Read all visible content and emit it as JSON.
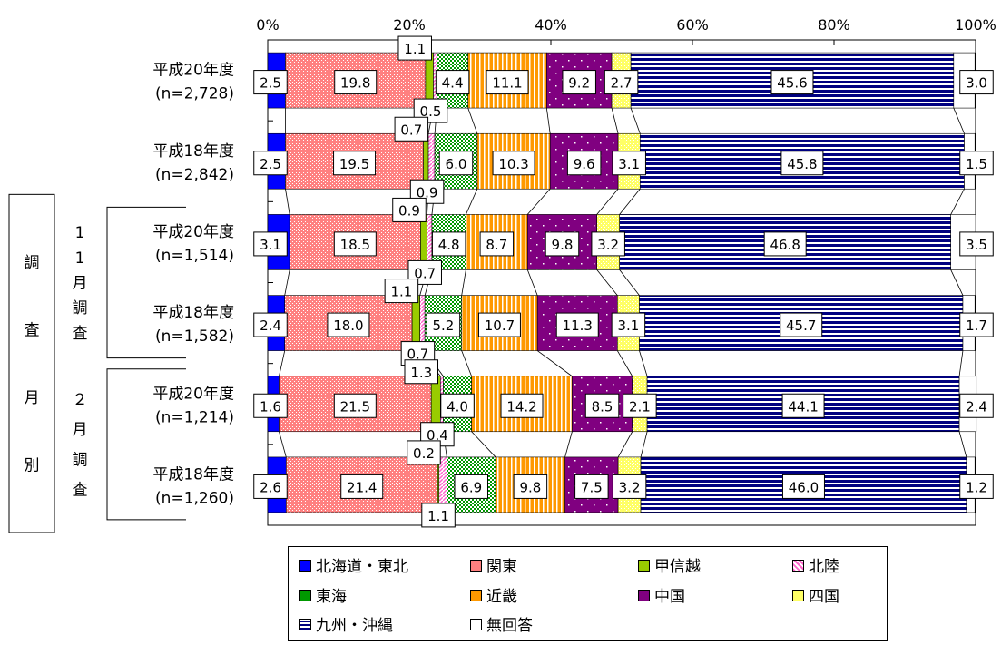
{
  "chart_data": {
    "type": "bar",
    "orientation": "horizontal",
    "stacked": true,
    "percent": true,
    "xlim": [
      0,
      100
    ],
    "x_ticks": [
      "0%",
      "20%",
      "40%",
      "60%",
      "80%",
      "100%"
    ],
    "categories": [
      {
        "line1": "平成20年度",
        "line2": "(n=2,728)"
      },
      {
        "line1": "平成18年度",
        "line2": "(n=2,842)"
      },
      {
        "line1": "平成20年度",
        "line2": "(n=1,514)"
      },
      {
        "line1": "平成18年度",
        "line2": "(n=1,582)"
      },
      {
        "line1": "平成20年度",
        "line2": "(n=1,214)"
      },
      {
        "line1": "平成18年度",
        "line2": "(n=1,260)"
      }
    ],
    "groups": {
      "outer": "調査月別",
      "inner": [
        {
          "label": "11月調査",
          "rows": [
            2,
            3
          ]
        },
        {
          "label": "２月調査",
          "rows": [
            4,
            5
          ]
        }
      ]
    },
    "series": [
      {
        "name": "北海道・東北",
        "color": "#0000ff",
        "pattern": "solid",
        "values": [
          2.5,
          2.5,
          3.1,
          2.4,
          1.6,
          2.6
        ],
        "labels": [
          "2.5",
          "2.5",
          "3.1",
          "2.4",
          "1.6",
          "2.6"
        ]
      },
      {
        "name": "関東",
        "color": "#ff8080",
        "pattern": "dots",
        "values": [
          19.8,
          19.5,
          18.5,
          18.0,
          21.5,
          21.4
        ],
        "labels": [
          "19.8",
          "19.5",
          "18.5",
          "18.0",
          "21.5",
          "21.4"
        ]
      },
      {
        "name": "甲信越",
        "color": "#99cc00",
        "pattern": "solid",
        "values": [
          1.1,
          0.7,
          0.9,
          1.1,
          1.3,
          0.2
        ],
        "labels": [
          "1.1",
          "0.7",
          "0.9",
          "1.1",
          "1.3",
          "0.2"
        ]
      },
      {
        "name": "北陸",
        "color": "#ff99cc",
        "pattern": "diag",
        "values": [
          0.5,
          0.9,
          0.7,
          0.7,
          0.4,
          1.1
        ],
        "labels": [
          "0.5",
          "0.9",
          "0.7",
          "0.7",
          "0.4",
          "1.1"
        ]
      },
      {
        "name": "東海",
        "color": "#009900",
        "pattern": "check",
        "values": [
          4.4,
          6.0,
          4.8,
          5.2,
          4.0,
          6.9
        ],
        "labels": [
          "4.4",
          "6.0",
          "4.8",
          "5.2",
          "4.0",
          "6.9"
        ]
      },
      {
        "name": "近畿",
        "color": "#ff9900",
        "pattern": "vstripes",
        "values": [
          11.1,
          10.3,
          8.7,
          10.7,
          14.2,
          9.8
        ],
        "labels": [
          "11.1",
          "10.3",
          "8.7",
          "10.7",
          "14.2",
          "9.8"
        ]
      },
      {
        "name": "中国",
        "color": "#800080",
        "pattern": "specks",
        "values": [
          9.2,
          9.6,
          9.8,
          11.3,
          8.5,
          7.5
        ],
        "labels": [
          "9.2",
          "9.6",
          "9.8",
          "11.3",
          "8.5",
          "7.5"
        ]
      },
      {
        "name": "四国",
        "color": "#ffff66",
        "pattern": "lightdots",
        "values": [
          2.7,
          3.1,
          3.2,
          3.1,
          2.1,
          3.2
        ],
        "labels": [
          "2.7",
          "3.1",
          "3.2",
          "3.1",
          "2.1",
          "3.2"
        ]
      },
      {
        "name": "九州・沖縄",
        "color": "#000080",
        "pattern": "hstripes",
        "values": [
          45.6,
          45.8,
          46.8,
          45.7,
          44.1,
          46.0
        ],
        "labels": [
          "45.6",
          "45.8",
          "46.8",
          "45.7",
          "44.1",
          "46.0"
        ]
      },
      {
        "name": "無回答",
        "color": "#ffffff",
        "pattern": "solid",
        "values": [
          3.0,
          1.5,
          3.5,
          1.7,
          2.4,
          1.2
        ],
        "labels": [
          "3.0",
          "1.5",
          "3.5",
          "1.7",
          "2.4",
          "1.2"
        ]
      }
    ],
    "legend_position": "bottom",
    "grid": false
  }
}
